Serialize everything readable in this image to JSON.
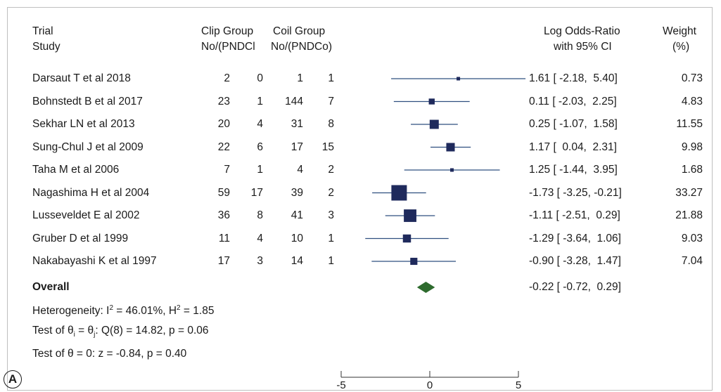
{
  "panel_label": "A",
  "header": {
    "trial_line1": "Trial",
    "trial_line2": "Study",
    "clip_line1": "Clip Group",
    "clip_line2": "No/(PNDCl",
    "coil_line1": "Coil Group",
    "coil_line2": "No/(PNDCo)",
    "lor_line1": "Log Odds-Ratio",
    "lor_line2": "with 95% CI",
    "weight_line1": "Weight",
    "weight_line2": "(%)"
  },
  "chart_data": {
    "type": "forest",
    "x_ticks": [
      -5,
      0,
      5
    ],
    "x_tick_labels": [
      "-5",
      "0",
      "5"
    ],
    "xlim": [
      -5,
      5
    ],
    "studies": [
      {
        "name": "Darsaut T et al 2018",
        "clip_no": "2",
        "clip_pnd": "0",
        "coil_no": "1",
        "coil_pnd": "1",
        "est": 1.61,
        "lo": -2.18,
        "hi": 5.4,
        "ci_text": "1.61 [ -2.18,  5.40]",
        "weight": 0.73,
        "weight_text": "0.73"
      },
      {
        "name": "Bohnstedt B et al 2017",
        "clip_no": "23",
        "clip_pnd": "1",
        "coil_no": "144",
        "coil_pnd": "7",
        "est": 0.11,
        "lo": -2.03,
        "hi": 2.25,
        "ci_text": "0.11 [ -2.03,  2.25]",
        "weight": 4.83,
        "weight_text": "4.83"
      },
      {
        "name": "Sekhar LN et al 2013",
        "clip_no": "20",
        "clip_pnd": "4",
        "coil_no": "31",
        "coil_pnd": "8",
        "est": 0.25,
        "lo": -1.07,
        "hi": 1.58,
        "ci_text": "0.25 [ -1.07,  1.58]",
        "weight": 11.55,
        "weight_text": "11.55"
      },
      {
        "name": "Sung-Chul J et al 2009",
        "clip_no": "22",
        "clip_pnd": "6",
        "coil_no": "17",
        "coil_pnd": "15",
        "est": 1.17,
        "lo": 0.04,
        "hi": 2.31,
        "ci_text": "1.17 [  0.04,  2.31]",
        "weight": 9.98,
        "weight_text": "9.98"
      },
      {
        "name": "Taha M et al 2006",
        "clip_no": "7",
        "clip_pnd": "1",
        "coil_no": "4",
        "coil_pnd": "2",
        "est": 1.25,
        "lo": -1.44,
        "hi": 3.95,
        "ci_text": "1.25 [ -1.44,  3.95]",
        "weight": 1.68,
        "weight_text": "1.68"
      },
      {
        "name": "Nagashima H et al 2004",
        "clip_no": "59",
        "clip_pnd": "17",
        "coil_no": "39",
        "coil_pnd": "2",
        "est": -1.73,
        "lo": -3.25,
        "hi": -0.21,
        "ci_text": "-1.73 [ -3.25, -0.21]",
        "weight": 33.27,
        "weight_text": "33.27"
      },
      {
        "name": "Lusseveldet E al 2002",
        "clip_no": "36",
        "clip_pnd": "8",
        "coil_no": "41",
        "coil_pnd": "3",
        "est": -1.11,
        "lo": -2.51,
        "hi": 0.29,
        "ci_text": "-1.11 [ -2.51,  0.29]",
        "weight": 21.88,
        "weight_text": "21.88"
      },
      {
        "name": "Gruber D et al 1999",
        "clip_no": "11",
        "clip_pnd": "4",
        "coil_no": "10",
        "coil_pnd": "1",
        "est": -1.29,
        "lo": -3.64,
        "hi": 1.06,
        "ci_text": "-1.29 [ -3.64,  1.06]",
        "weight": 9.03,
        "weight_text": "9.03"
      },
      {
        "name": "Nakabayashi K et al 1997",
        "clip_no": "17",
        "clip_pnd": "3",
        "coil_no": "14",
        "coil_pnd": "1",
        "est": -0.9,
        "lo": -3.28,
        "hi": 1.47,
        "ci_text": "-0.90 [ -3.28,  1.47]",
        "weight": 7.04,
        "weight_text": "7.04"
      }
    ],
    "overall": {
      "name": "Overall",
      "est": -0.22,
      "lo": -0.72,
      "hi": 0.29,
      "ci_text": "-0.22 [ -0.72,  0.29]"
    },
    "colors": {
      "marker": "#1f2a5c",
      "ci_line": "#2f4f7f",
      "diamond": "#2e6b2e"
    }
  },
  "stats": {
    "heterogeneity": {
      "prefix": "Heterogeneity: I",
      "i2_sup": "2",
      "mid": " = 46.01%, H",
      "h2_sup": "2",
      "suffix": " = 1.85"
    },
    "test_equal": {
      "prefix": "Test of θ",
      "sub_i": "i",
      "mid": " = θ",
      "sub_j": "j",
      "suffix": ": Q(8) = 14.82, p = 0.06"
    },
    "test_zero": "Test of θ = 0: z = -0.84, p = 0.40"
  }
}
